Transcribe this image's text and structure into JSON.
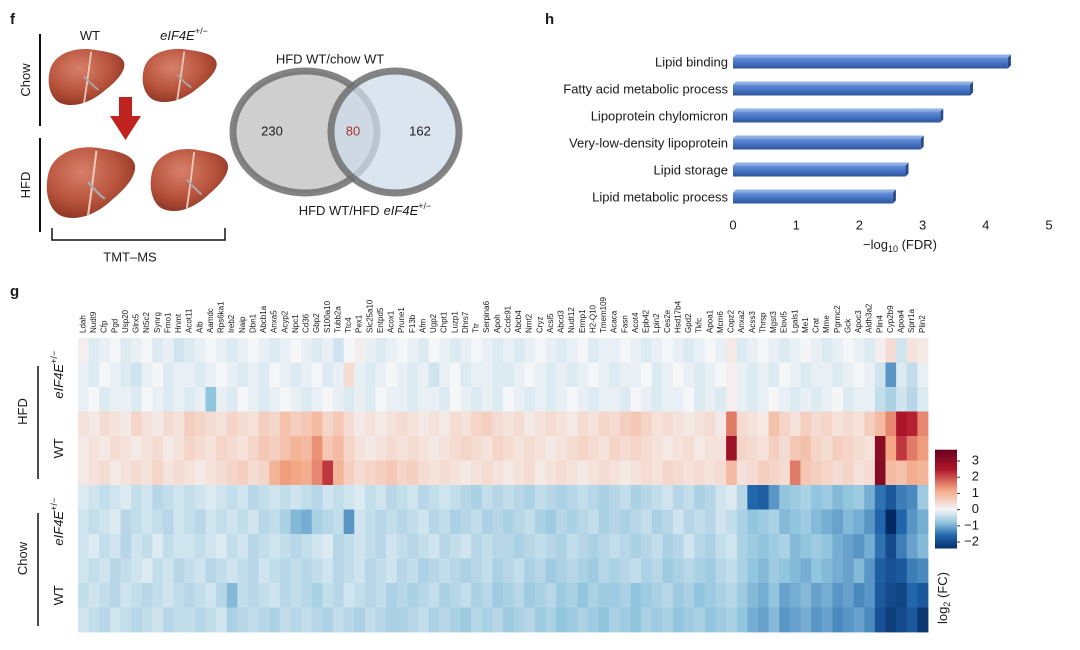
{
  "panel_f": {
    "panel": "f",
    "columns": [
      "WT",
      [
        "eIF4E",
        "+/−"
      ]
    ],
    "rows": [
      "Chow",
      "HFD"
    ],
    "method": "TMT–MS",
    "venn": {
      "title": "HFD WT/chow WT",
      "left": 230,
      "overlap": 80,
      "right": 162,
      "bottom_label": [
        "HFD WT/HFD",
        "eIF4E",
        "+/−"
      ]
    }
  },
  "chart_data": [
    {
      "type": "bar",
      "panel": "h",
      "orientation": "horizontal",
      "categories": [
        "Lipid binding",
        "Fatty acid metabolic process",
        "Lipoprotein chylomicron",
        "Very-low-density lipoprotein",
        "Lipid storage",
        "Lipid metabolic process"
      ],
      "values": [
        4.35,
        3.75,
        3.28,
        2.97,
        2.73,
        2.53
      ],
      "color": "#4472c4",
      "xlim": [
        0,
        5
      ],
      "xticks": [
        0,
        1,
        2,
        3,
        4,
        5
      ],
      "xlabel": [
        "−log",
        "10",
        " (FDR)"
      ]
    },
    {
      "type": "heatmap",
      "panel": "g",
      "x": [
        "Ldah",
        "Nudt9",
        "Cfp",
        "Pgd",
        "Usp20",
        "Glrx5",
        "Nt5c2",
        "Synrg",
        "Fmo1",
        "Hnmt",
        "Acot11",
        "Alb",
        "Aamdc",
        "Rps6ka1",
        "Ireb2",
        "Naip",
        "Dbn1",
        "Abcb1a",
        "Anxa5",
        "Acyp2",
        "Npc1",
        "Cd36",
        "Gbp2",
        "S100a10",
        "Tubb2a",
        "Ttc4",
        "Pex1",
        "Slc25a10",
        "Entpd5",
        "Acox1",
        "Prune1",
        "F13b",
        "Afm",
        "Ugp2",
        "Chpt1",
        "Luzp1",
        "Dhrs7",
        "Ttr",
        "Serpina6",
        "Apoh",
        "Ccdc91",
        "Abcb4",
        "Nmt2",
        "Cryz",
        "Acsl5",
        "Abcd3",
        "Nudt12",
        "Ermp1",
        "H2-Q10",
        "Tmem109",
        "Acaca",
        "Fasn",
        "Acot4",
        "Epb42",
        "Lpin2",
        "Ces2e",
        "Hsd17b4",
        "Gpd2",
        "Tkfc",
        "Apoa1",
        "Mcm6",
        "Copz2",
        "Anxa2",
        "Acss3",
        "Thrsp",
        "Mgst3",
        "Elovl5",
        "Lgals1",
        "Me1",
        "Crat",
        "Mme",
        "Pgrmc2",
        "Gck",
        "Apoc3",
        "Aldh3a2",
        "Plin4",
        "Cyp2b9",
        "Apoa4",
        "Sprr1a",
        "Plin2"
      ],
      "row_groups": [
        {
          "name": "HFD",
          "subgroups": [
            [
              "eIF4E",
              "+/−"
            ],
            [
              "WT"
            ]
          ]
        },
        {
          "name": "Chow",
          "subgroups": [
            [
              "eIF4E",
              "+/−"
            ],
            [
              "WT"
            ]
          ]
        }
      ],
      "values": [
        [
          0.1,
          -0.2,
          -0.1,
          0,
          -0.2,
          -0.1,
          0,
          -0.2,
          -0.1,
          -0.3,
          -0.2,
          -0.1,
          0,
          -0.1,
          -0.2,
          -0.1,
          0,
          -0.1,
          -0.2,
          -0.1,
          0,
          -0.1,
          -0.2,
          -0.1,
          -0.3,
          0,
          0.1,
          -0.1,
          -0.2,
          -0.1,
          0,
          -0.1,
          -0.2,
          0,
          -0.1,
          -0.2,
          -0.1,
          0,
          -0.1,
          -0.2,
          -0.1,
          -0.2,
          -0.1,
          0,
          -0.1,
          -0.2,
          -0.1,
          0,
          -0.2,
          -0.1,
          -0.1,
          0,
          -0.1,
          -0.2,
          -0.1,
          0,
          -0.1,
          -0.2,
          -0.1,
          0,
          -0.1,
          0.2,
          -0.2,
          -0.1,
          0,
          -0.1,
          -0.2,
          -0.1,
          0,
          -0.1,
          -0.2,
          -0.1,
          0,
          -0.1,
          -0.2,
          0.1,
          0.4,
          -0.3,
          0.3,
          0.2
        ],
        [
          -0.1,
          -0.2,
          0,
          -0.1,
          -0.2,
          -0.3,
          -0.1,
          0,
          -0.2,
          -0.1,
          -0.1,
          -0.2,
          -0.1,
          0,
          -0.1,
          -0.2,
          -0.1,
          -0.2,
          0,
          -0.1,
          -0.2,
          -0.1,
          0,
          -0.2,
          -0.1,
          0.4,
          -0.1,
          -0.2,
          -0.1,
          0,
          -0.1,
          -0.2,
          -0.1,
          -0.3,
          -0.1,
          0,
          -0.2,
          -0.1,
          -0.1,
          -0.2,
          -0.2,
          -0.1,
          0,
          -0.1,
          -0.2,
          -0.1,
          -0.2,
          -0.1,
          0,
          -0.1,
          -0.2,
          -0.1,
          -0.1,
          0,
          -0.2,
          -0.1,
          0,
          -0.1,
          -0.2,
          -0.1,
          0,
          0.1,
          -0.1,
          -0.2,
          -0.1,
          -0.2,
          0,
          -0.1,
          -0.2,
          -0.1,
          -0.1,
          -0.2,
          -0.1,
          0,
          -0.1,
          -0.3,
          -1.2,
          -0.2,
          -0.4,
          -0.1
        ],
        [
          -0.1,
          0,
          -0.2,
          -0.1,
          -0.1,
          -0.2,
          0,
          -0.1,
          -0.2,
          -0.1,
          -0.2,
          -0.1,
          -0.8,
          -0.1,
          -0.2,
          0,
          -0.1,
          -0.2,
          -0.1,
          0,
          -0.1,
          -0.2,
          -0.1,
          0,
          -0.1,
          -0.2,
          -0.1,
          -0.2,
          0,
          -0.1,
          -0.1,
          -0.2,
          -0.1,
          -0.1,
          -0.2,
          0,
          -0.1,
          -0.2,
          -0.1,
          -0.2,
          0,
          -0.1,
          -0.2,
          -0.1,
          -0.2,
          -0.1,
          0,
          -0.1,
          -0.2,
          -0.1,
          -0.1,
          -0.2,
          0,
          -0.1,
          -0.2,
          -0.1,
          -0.1,
          0,
          -0.2,
          -0.1,
          -0.2,
          0.1,
          -0.1,
          -0.2,
          -0.1,
          0,
          -0.1,
          -0.2,
          -0.1,
          -0.2,
          -0.1,
          0,
          -0.2,
          -0.1,
          -0.1,
          -0.4,
          -0.6,
          -0.3,
          -0.5,
          -0.2
        ],
        [
          0.3,
          0.2,
          0.4,
          0.3,
          0.2,
          0.5,
          0.3,
          0.2,
          0.4,
          0.3,
          0.6,
          0.5,
          0.4,
          0.3,
          0.5,
          0.4,
          0.3,
          0.6,
          0.5,
          0.8,
          0.6,
          0.7,
          0.9,
          0.5,
          0.7,
          0.4,
          0.2,
          0.3,
          0.2,
          0.3,
          0.4,
          0.3,
          0.2,
          0.3,
          0.2,
          0.4,
          0.3,
          0.5,
          0.6,
          0.4,
          0.3,
          0.4,
          0.2,
          0.3,
          0.4,
          0.3,
          0.2,
          0.4,
          0.3,
          0.5,
          0.4,
          0.6,
          0.7,
          0.5,
          0.3,
          0.4,
          0.3,
          0.2,
          0.3,
          0.4,
          0.2,
          1.6,
          0.4,
          0.3,
          0.2,
          0.8,
          0.5,
          0.3,
          0.6,
          0.4,
          0.5,
          0.3,
          0.4,
          0.3,
          0.6,
          0.9,
          1.5,
          2.6,
          2.4,
          1.5
        ],
        [
          0.2,
          0.3,
          0.2,
          0.4,
          0.3,
          0.2,
          0.3,
          0.4,
          0.2,
          0.3,
          0.5,
          0.4,
          0.3,
          0.5,
          0.4,
          0.3,
          0.5,
          0.7,
          0.6,
          0.8,
          1.0,
          0.9,
          1.4,
          0.7,
          0.9,
          0.5,
          0.3,
          0.2,
          0.3,
          0.4,
          0.3,
          0.4,
          0.3,
          0.2,
          0.3,
          0.4,
          0.5,
          0.4,
          0.3,
          0.5,
          0.4,
          0.3,
          0.4,
          0.3,
          0.2,
          0.3,
          0.4,
          0.5,
          0.4,
          0.3,
          0.5,
          0.4,
          0.5,
          0.4,
          0.3,
          0.2,
          0.3,
          0.4,
          0.2,
          0.3,
          0.3,
          2.8,
          0.5,
          0.4,
          0.3,
          0.6,
          0.4,
          0.7,
          0.8,
          0.5,
          0.4,
          0.6,
          0.5,
          0.4,
          0.3,
          3.1,
          1.2,
          2.2,
          1.6,
          1.3
        ],
        [
          0.2,
          0.3,
          0.4,
          0.2,
          0.3,
          0.4,
          0.3,
          0.5,
          0.3,
          0.4,
          0.3,
          0.2,
          0.3,
          0.4,
          0.5,
          0.6,
          0.4,
          0.5,
          1.0,
          1.3,
          1.2,
          1.1,
          1.5,
          2.2,
          1.0,
          0.6,
          0.4,
          0.5,
          0.6,
          0.7,
          0.5,
          0.6,
          0.4,
          0.3,
          0.4,
          0.3,
          0.2,
          0.3,
          0.4,
          0.3,
          0.2,
          0.3,
          0.4,
          0.2,
          0.3,
          0.4,
          0.3,
          0.2,
          0.3,
          0.4,
          0.3,
          0.2,
          0.3,
          0.4,
          0.3,
          0.5,
          0.4,
          0.3,
          0.4,
          0.3,
          0.4,
          0.9,
          0.3,
          0.4,
          0.6,
          0.5,
          0.4,
          1.6,
          0.7,
          0.6,
          0.5,
          0.4,
          0.5,
          0.3,
          0.4,
          3.2,
          0.9,
          0.8,
          1.1,
          1.0
        ],
        [
          -0.2,
          -0.3,
          -0.4,
          -0.3,
          -0.2,
          -0.4,
          -0.3,
          -0.5,
          -0.4,
          -0.3,
          -0.4,
          -0.3,
          -0.2,
          -0.3,
          -0.4,
          -0.3,
          -0.5,
          -0.4,
          -0.3,
          -0.4,
          -0.3,
          -0.4,
          -0.5,
          -0.3,
          -0.4,
          -0.3,
          -0.2,
          -0.4,
          -0.3,
          -0.5,
          -0.4,
          -0.3,
          -0.5,
          -0.4,
          -0.3,
          -0.4,
          -0.5,
          -0.6,
          -0.4,
          -0.5,
          -0.4,
          -0.5,
          -0.6,
          -0.4,
          -0.5,
          -0.6,
          -0.5,
          -0.4,
          -0.5,
          -0.6,
          -0.5,
          -0.4,
          -0.6,
          -0.5,
          -0.4,
          -0.3,
          -0.5,
          -0.4,
          -0.6,
          -0.5,
          -0.3,
          -0.2,
          -0.5,
          -1.6,
          -1.7,
          -1.2,
          -0.8,
          -0.7,
          -0.6,
          -0.8,
          -0.7,
          -0.9,
          -0.8,
          -0.7,
          -1.0,
          -1.5,
          -1.8,
          -1.4,
          -1.3,
          -0.7
        ],
        [
          -0.3,
          -0.4,
          -0.3,
          -0.2,
          -0.5,
          -0.4,
          -0.3,
          -0.4,
          -0.5,
          -0.3,
          -0.4,
          -0.5,
          -0.3,
          -0.4,
          -0.3,
          -0.4,
          -0.3,
          -0.5,
          -0.4,
          -0.6,
          -0.9,
          -1.0,
          -0.6,
          -0.5,
          -0.4,
          -1.2,
          -0.3,
          -0.4,
          -0.5,
          -0.4,
          -0.5,
          -0.4,
          -0.3,
          -0.5,
          -0.4,
          -0.6,
          -0.5,
          -0.4,
          -0.6,
          -0.5,
          -0.6,
          -0.5,
          -0.4,
          -0.6,
          -0.7,
          -0.5,
          -0.6,
          -0.5,
          -0.4,
          -0.6,
          -0.5,
          -0.6,
          -0.5,
          -0.4,
          -0.6,
          -0.5,
          -0.3,
          -0.5,
          -0.4,
          -0.5,
          -0.3,
          -0.4,
          -0.6,
          -0.8,
          -0.7,
          -0.6,
          -0.9,
          -0.8,
          -0.7,
          -0.9,
          -1.0,
          -1.1,
          -0.9,
          -1.0,
          -1.2,
          -1.6,
          -2.5,
          -1.6,
          -1.2,
          -1.0
        ],
        [
          -0.3,
          -0.2,
          -0.4,
          -0.3,
          -0.5,
          -0.3,
          -0.4,
          -0.2,
          -0.4,
          -0.3,
          -0.3,
          -0.4,
          -0.3,
          -0.2,
          -0.4,
          -0.3,
          -0.5,
          -0.4,
          -0.3,
          -0.4,
          -0.5,
          -0.4,
          -0.3,
          -0.2,
          -0.5,
          -0.4,
          -0.3,
          -0.4,
          -0.5,
          -0.3,
          -0.4,
          -0.5,
          -0.4,
          -0.3,
          -0.5,
          -0.4,
          -0.3,
          -0.5,
          -0.4,
          -0.5,
          -0.5,
          -0.6,
          -0.5,
          -0.4,
          -0.5,
          -0.6,
          -0.4,
          -0.5,
          -0.6,
          -0.5,
          -0.4,
          -0.5,
          -0.6,
          -0.5,
          -0.4,
          -0.6,
          -0.5,
          -0.3,
          -0.5,
          -0.6,
          -0.4,
          -0.3,
          -0.6,
          -0.7,
          -0.8,
          -0.7,
          -0.6,
          -0.9,
          -0.8,
          -0.7,
          -0.8,
          -1.0,
          -1.1,
          -1.2,
          -1.0,
          -1.5,
          -2.0,
          -1.4,
          -1.1,
          -0.9
        ],
        [
          -0.3,
          -0.4,
          -0.3,
          -0.5,
          -0.4,
          -0.3,
          -0.2,
          -0.4,
          -0.3,
          -0.5,
          -0.4,
          -0.3,
          -0.5,
          -0.4,
          -0.3,
          -0.4,
          -0.5,
          -0.3,
          -0.4,
          -0.5,
          -0.4,
          -0.5,
          -0.4,
          -0.3,
          -0.5,
          -0.4,
          -0.3,
          -0.5,
          -0.4,
          -0.3,
          -0.5,
          -0.4,
          -0.6,
          -0.5,
          -0.4,
          -0.5,
          -0.6,
          -0.5,
          -0.4,
          -0.6,
          -0.5,
          -0.4,
          -0.6,
          -0.5,
          -0.7,
          -0.6,
          -0.5,
          -0.6,
          -0.7,
          -0.5,
          -0.6,
          -0.5,
          -0.4,
          -0.6,
          -0.5,
          -0.7,
          -0.6,
          -0.5,
          -0.6,
          -0.7,
          -0.5,
          -0.4,
          -0.6,
          -0.8,
          -0.9,
          -0.7,
          -0.8,
          -0.9,
          -1.0,
          -0.8,
          -0.9,
          -1.0,
          -1.1,
          -0.9,
          -1.2,
          -1.7,
          -1.9,
          -1.8,
          -1.4,
          -1.3
        ],
        [
          -0.4,
          -0.3,
          -0.4,
          -0.5,
          -0.3,
          -0.4,
          -0.5,
          -0.4,
          -0.3,
          -0.4,
          -0.5,
          -0.4,
          -0.3,
          -0.5,
          -0.9,
          -0.4,
          -0.5,
          -0.4,
          -0.3,
          -0.5,
          -0.4,
          -0.5,
          -0.6,
          -0.4,
          -0.5,
          -0.3,
          -0.4,
          -0.5,
          -0.4,
          -0.6,
          -0.5,
          -0.6,
          -0.5,
          -0.4,
          -0.6,
          -0.5,
          -0.4,
          -0.6,
          -0.5,
          -0.7,
          -0.6,
          -0.5,
          -0.7,
          -0.6,
          -0.5,
          -0.7,
          -0.6,
          -0.8,
          -0.6,
          -0.7,
          -0.7,
          -0.6,
          -0.8,
          -0.7,
          -0.6,
          -0.5,
          -0.7,
          -0.6,
          -0.8,
          -0.7,
          -0.6,
          -0.5,
          -0.7,
          -0.9,
          -1.0,
          -0.8,
          -1.1,
          -1.0,
          -0.9,
          -1.1,
          -1.0,
          -1.2,
          -1.1,
          -1.3,
          -1.2,
          -1.8,
          -2.0,
          -2.1,
          -1.6,
          -1.8
        ],
        [
          -0.3,
          -0.4,
          -0.5,
          -0.3,
          -0.4,
          -0.5,
          -0.4,
          -0.3,
          -0.5,
          -0.4,
          -0.4,
          -0.5,
          -0.4,
          -0.3,
          -0.6,
          -0.5,
          -0.4,
          -0.5,
          -0.6,
          -0.4,
          -0.5,
          -0.4,
          -0.5,
          -0.6,
          -0.4,
          -0.5,
          -0.6,
          -0.4,
          -0.5,
          -0.6,
          -0.6,
          -0.5,
          -0.4,
          -0.6,
          -0.5,
          -0.6,
          -0.7,
          -0.5,
          -0.6,
          -0.5,
          -0.7,
          -0.6,
          -0.5,
          -0.7,
          -0.6,
          -0.8,
          -0.7,
          -0.6,
          -0.7,
          -0.8,
          -0.6,
          -0.7,
          -0.8,
          -0.6,
          -0.7,
          -0.6,
          -0.8,
          -0.7,
          -0.6,
          -0.8,
          -0.7,
          -0.6,
          -0.8,
          -1.0,
          -1.1,
          -0.9,
          -1.2,
          -1.1,
          -1.0,
          -1.2,
          -1.1,
          -1.3,
          -1.2,
          -1.1,
          -1.3,
          -1.9,
          -2.2,
          -2.0,
          -1.8,
          -2.3
        ]
      ],
      "colormap": [
        "#08306b",
        "#2166ac",
        "#92c5de",
        "#f4f6f8",
        "#f4a582",
        "#b2182b",
        "#67001f"
      ],
      "colorbar": {
        "lim": [
          -2.4,
          3.7
        ],
        "ticks": [
          {
            "value": -2,
            "label": "−2"
          },
          {
            "value": -1,
            "label": "−1"
          },
          0,
          1,
          2,
          3
        ],
        "label": [
          "log",
          "2",
          " (FC)"
        ]
      }
    }
  ]
}
